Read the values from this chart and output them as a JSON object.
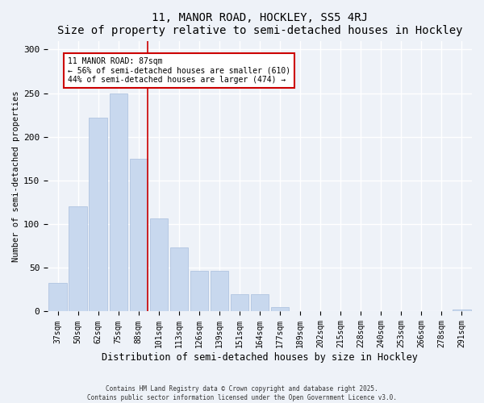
{
  "title": "11, MANOR ROAD, HOCKLEY, SS5 4RJ",
  "subtitle": "Size of property relative to semi-detached houses in Hockley",
  "xlabel": "Distribution of semi-detached houses by size in Hockley",
  "ylabel": "Number of semi-detached properties",
  "categories": [
    "37sqm",
    "50sqm",
    "62sqm",
    "75sqm",
    "88sqm",
    "101sqm",
    "113sqm",
    "126sqm",
    "139sqm",
    "151sqm",
    "164sqm",
    "177sqm",
    "189sqm",
    "202sqm",
    "215sqm",
    "228sqm",
    "240sqm",
    "253sqm",
    "266sqm",
    "278sqm",
    "291sqm"
  ],
  "values": [
    33,
    120,
    222,
    250,
    175,
    107,
    73,
    47,
    47,
    20,
    20,
    5,
    0,
    0,
    0,
    0,
    0,
    0,
    0,
    0,
    2
  ],
  "bar_color": "#c8d8ee",
  "bar_edge_color": "#a8bedd",
  "property_bin_index": 4,
  "annotation_title": "11 MANOR ROAD: 87sqm",
  "annotation_line1": "← 56% of semi-detached houses are smaller (610)",
  "annotation_line2": "44% of semi-detached houses are larger (474) →",
  "vline_color": "#cc0000",
  "annotation_box_color": "#ffffff",
  "annotation_box_edge": "#cc0000",
  "ylim": [
    0,
    310
  ],
  "yticks": [
    0,
    50,
    100,
    150,
    200,
    250,
    300
  ],
  "background_color": "#eef2f8",
  "grid_color": "#ffffff",
  "footnote1": "Contains HM Land Registry data © Crown copyright and database right 2025.",
  "footnote2": "Contains public sector information licensed under the Open Government Licence v3.0."
}
